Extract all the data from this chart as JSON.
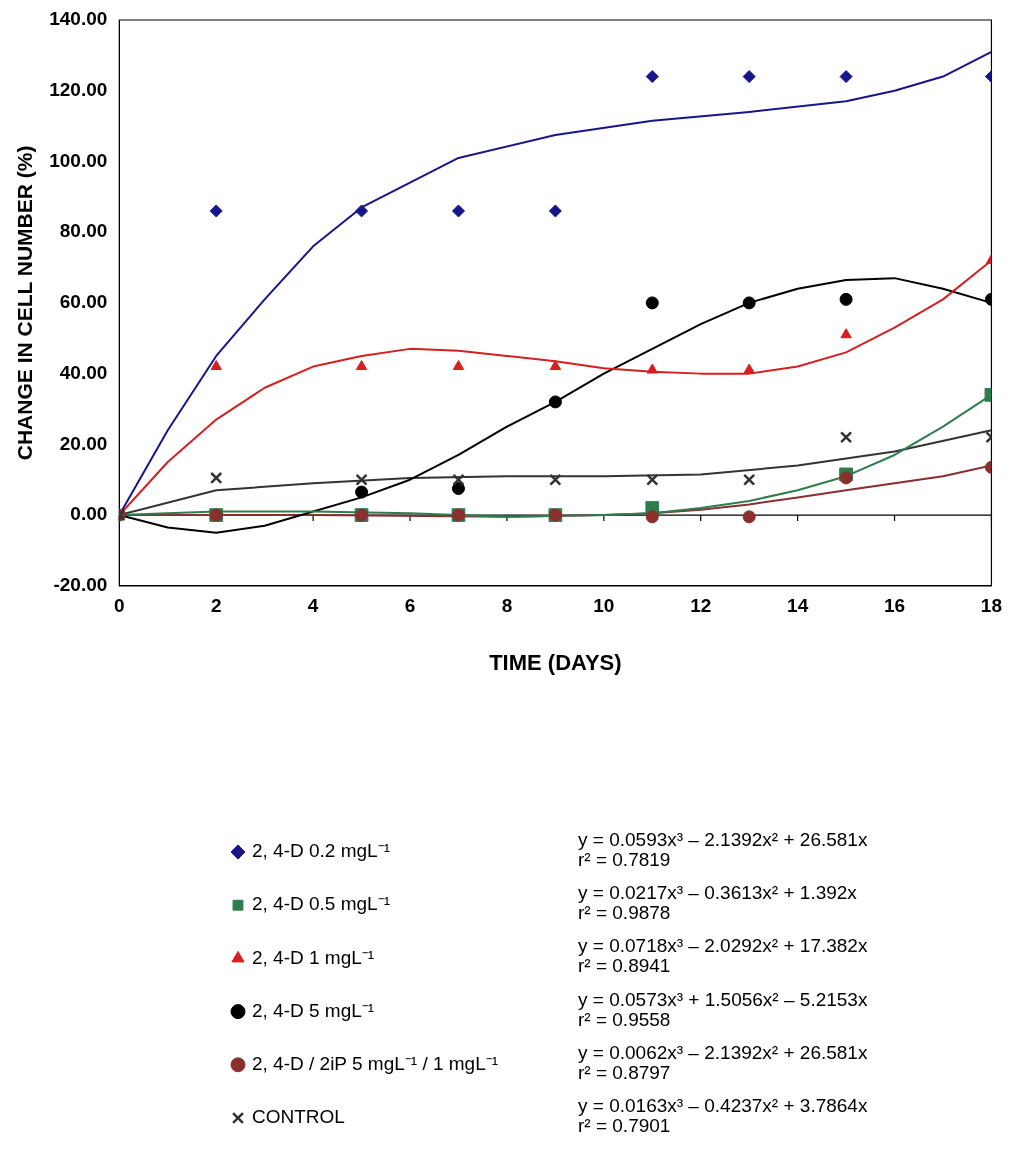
{
  "chart_data": {
    "type": "scatter",
    "xlabel": "TIME (DAYS)",
    "ylabel": "CHANGE IN CELL NUMBER (%)",
    "x": [
      0,
      2,
      5,
      7,
      9,
      11,
      13,
      15,
      18
    ],
    "xlim": [
      0,
      18
    ],
    "xticks": [
      0,
      2,
      4,
      6,
      8,
      10,
      12,
      14,
      16,
      18
    ],
    "ylim": [
      -20,
      140
    ],
    "yticks": [
      {
        "value": -20,
        "label": "-20.00"
      },
      {
        "value": 0,
        "label": "0.00"
      },
      {
        "value": 20,
        "label": "20.00"
      },
      {
        "value": 40,
        "label": "40.00"
      },
      {
        "value": 60,
        "label": "60.00"
      },
      {
        "value": 80,
        "label": "80.00"
      },
      {
        "value": 100,
        "label": "100.00"
      },
      {
        "value": 120,
        "label": "120.00"
      },
      {
        "value": 140,
        "label": "140.00"
      }
    ],
    "grid": false,
    "legend": "bottom",
    "ref_lines": [
      {
        "axis": "y",
        "value": 0,
        "color": "#000000"
      }
    ],
    "series": [
      {
        "name": "2, 4-D 0.2 mgL⁻¹",
        "type": "scatter",
        "marker": "diamond",
        "color": "#16168a",
        "values": [
          null,
          86,
          86,
          86,
          86,
          124,
          124,
          124,
          124
        ]
      },
      {
        "name": "2, 4-D 0.5 mgL⁻¹",
        "type": "scatter",
        "marker": "square",
        "color": "#2e7d4f",
        "values": [
          null,
          0,
          0,
          0,
          0,
          2,
          null,
          11.5,
          34
        ]
      },
      {
        "name": "2, 4-D 1 mgL⁻¹",
        "type": "scatter",
        "marker": "triangle",
        "color": "#d42020",
        "values": [
          null,
          42,
          42,
          42,
          42,
          41,
          41,
          51,
          72
        ]
      },
      {
        "name": "2, 4-D 5 mgL⁻¹",
        "type": "scatter",
        "marker": "circle",
        "color": "#000000",
        "values": [
          null,
          null,
          6.5,
          7.5,
          32,
          60,
          60,
          61,
          61
        ]
      },
      {
        "name": "2, 4-D / 2iP 5 mgL⁻¹ / 1 mgL⁻¹",
        "type": "scatter",
        "marker": "circle",
        "color": "#8b2e2e",
        "values": [
          0,
          0,
          0,
          0,
          0,
          -0.5,
          -0.5,
          10.5,
          13.5
        ]
      },
      {
        "name": "CONTROL",
        "type": "scatter",
        "marker": "cross",
        "color": "#333333",
        "values": [
          0,
          10.5,
          10,
          10,
          10,
          10,
          10,
          22,
          22
        ]
      },
      {
        "type": "line",
        "marker": "none",
        "color": "#16168a",
        "x": [
          0,
          1,
          2,
          3,
          4,
          5,
          7,
          9,
          11,
          13,
          15,
          16,
          17,
          18
        ],
        "values": [
          0,
          24,
          45,
          61,
          76,
          87,
          101,
          107.5,
          111.5,
          114,
          117,
          120,
          124,
          131
        ]
      },
      {
        "type": "line",
        "marker": "none",
        "color": "#2e7d4f",
        "x": [
          0,
          2,
          4,
          6,
          8,
          10,
          11,
          12,
          13,
          14,
          15,
          16,
          17,
          18
        ],
        "values": [
          0,
          1,
          1,
          0.5,
          -0.5,
          0,
          0.5,
          2,
          4,
          7,
          11,
          17,
          25,
          34
        ]
      },
      {
        "type": "line",
        "marker": "none",
        "color": "#d42020",
        "x": [
          0,
          1,
          2,
          3,
          4,
          5,
          6,
          7,
          8,
          9,
          10,
          11,
          12,
          13,
          14,
          15,
          16,
          17,
          18
        ],
        "values": [
          0,
          15,
          27,
          36,
          42,
          45,
          47,
          46.5,
          45,
          43.5,
          41.5,
          40.5,
          40,
          40,
          42,
          46,
          53,
          61,
          72
        ]
      },
      {
        "type": "line",
        "marker": "none",
        "color": "#000000",
        "x": [
          0,
          1,
          2,
          3,
          4,
          5,
          6,
          7,
          8,
          9,
          10,
          11,
          12,
          13,
          14,
          15,
          16,
          17,
          18
        ],
        "values": [
          0,
          -3.5,
          -5,
          -3,
          1,
          5,
          10,
          17,
          25,
          32,
          40,
          47,
          54,
          60,
          64,
          66.5,
          67,
          64,
          60
        ]
      },
      {
        "type": "line",
        "marker": "none",
        "color": "#8b2e2e",
        "x": [
          0,
          4,
          8,
          10,
          11,
          12,
          13,
          14,
          15,
          16,
          17,
          18
        ],
        "values": [
          0,
          0,
          -0.5,
          0,
          0.5,
          1.5,
          3,
          5,
          7,
          9,
          11,
          14
        ]
      },
      {
        "type": "line",
        "marker": "none",
        "color": "#333333",
        "x": [
          0,
          2,
          4,
          6,
          8,
          10,
          12,
          14,
          16,
          18
        ],
        "values": [
          0,
          7,
          9,
          10.5,
          11,
          11,
          11.5,
          14,
          18,
          24
        ]
      }
    ],
    "annotations": [
      "y = 0.0593x³ – 2.1392x² + 26.581x",
      "r² = 0.7819",
      "y = 0.0217x³ – 0.3613x² + 1.392x",
      "r² = 0.9878",
      "y = 0.0718x³ – 2.0292x² + 17.382x",
      "r² = 0.8941",
      "y = 0.0573x³ + 1.5056x² – 5.2153x",
      "r² = 0.9558",
      "y = 0.0062x³ – 2.1392x² + 26.581x",
      "r² = 0.8797",
      "y = 0.0163x³ – 0.4237x² + 3.7864x",
      "r² = 0.7901"
    ]
  }
}
